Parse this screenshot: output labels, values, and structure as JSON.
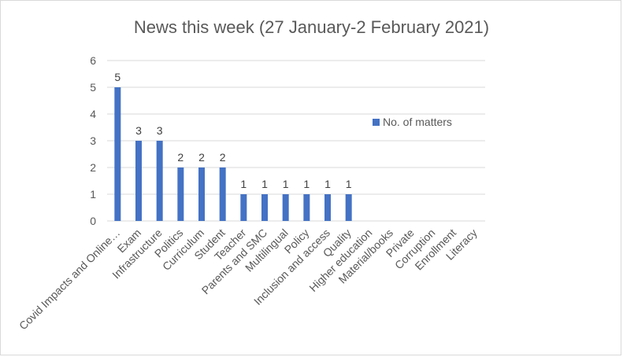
{
  "chart_data": {
    "type": "bar",
    "title": "News this week (27 January-2 February 2021)",
    "categories": [
      "Covid Impacts and Online…",
      "Exam",
      "Infrastructure",
      "Politics",
      "Curriculum",
      "Student",
      "Teacher",
      "Parents and SMC",
      "Multilingual",
      "Policy",
      "Inclusion and access",
      "Quality",
      "Higher education",
      "Material/books",
      "Private",
      "Corruption",
      "Enrollment",
      "Literacy"
    ],
    "series": [
      {
        "name": "No. of matters",
        "values": [
          5,
          3,
          3,
          2,
          2,
          2,
          1,
          1,
          1,
          1,
          1,
          1,
          0,
          0,
          0,
          0,
          0,
          0
        ],
        "color": "#4472c4"
      }
    ],
    "data_labels": [
      "5",
      "3",
      "3",
      "2",
      "2",
      "2",
      "1",
      "1",
      "1",
      "1",
      "1",
      "1",
      "",
      "",
      "",
      "",
      "",
      ""
    ],
    "ylim": [
      0,
      6
    ],
    "yticks": [
      "0",
      "1",
      "2",
      "3",
      "4",
      "5",
      "6"
    ],
    "xlabel": "",
    "ylabel": "",
    "grid": true,
    "legend_position": "right",
    "colors": {
      "bar": "#4472c4",
      "grid": "#d9d9d9",
      "text": "#595959"
    }
  }
}
